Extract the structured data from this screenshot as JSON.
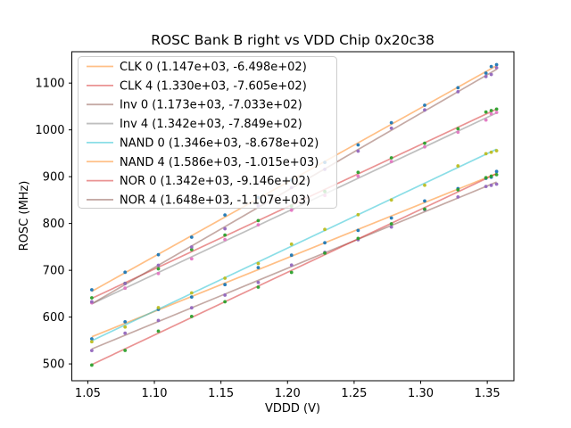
{
  "chart_data": {
    "type": "scatter",
    "title": "ROSC Bank B right vs VDD Chip 0x20c38",
    "xlabel": "VDDD (V)",
    "ylabel": "ROSC (MHz)",
    "xlim": [
      1.038,
      1.37
    ],
    "ylim": [
      464,
      1167
    ],
    "x_ticks": [
      "1.05",
      "1.10",
      "1.15",
      "1.20",
      "1.25",
      "1.30",
      "1.35"
    ],
    "y_ticks": [
      500,
      600,
      700,
      800,
      900,
      1000,
      1100
    ],
    "grid": false,
    "legend_position": "upper left",
    "background": "#ffffff",
    "frame_color": "#000000",
    "x_values": [
      1.053,
      1.078,
      1.103,
      1.128,
      1.153,
      1.178,
      1.203,
      1.228,
      1.253,
      1.278,
      1.303,
      1.328,
      1.349,
      1.353,
      1.357
    ],
    "fit_model": "y_mhz = slope * x_volts + intercept",
    "series": [
      {
        "name": "CLK 0",
        "legend_label": "CLK 0 (1.147e+03, -6.498e+02)",
        "slope": 1147,
        "intercept": -649.8,
        "line_color": "#ff7f0e",
        "marker_color": "#1f77b4"
      },
      {
        "name": "CLK 4",
        "legend_label": "CLK 4 (1.330e+03, -7.605e+02)",
        "slope": 1330,
        "intercept": -760.5,
        "line_color": "#d62728",
        "marker_color": "#2ca02c"
      },
      {
        "name": "Inv 0",
        "legend_label": "Inv 0 (1.173e+03, -7.033e+02)",
        "slope": 1173,
        "intercept": -703.3,
        "line_color": "#8c564b",
        "marker_color": "#9467bd"
      },
      {
        "name": "Inv 4",
        "legend_label": "Inv 4 (1.342e+03, -7.849e+02)",
        "slope": 1342,
        "intercept": -784.9,
        "line_color": "#7f7f7f",
        "marker_color": "#e377c2"
      },
      {
        "name": "NAND 0",
        "legend_label": "NAND 0 (1.346e+03, -8.678e+02)",
        "slope": 1346,
        "intercept": -867.8,
        "line_color": "#17becf",
        "marker_color": "#bcbd22"
      },
      {
        "name": "NAND 4",
        "legend_label": "NAND 4 (1.586e+03, -1.015e+03)",
        "slope": 1586,
        "intercept": -1015.0,
        "line_color": "#ff7f0e",
        "marker_color": "#1f77b4"
      },
      {
        "name": "NOR 0",
        "legend_label": "NOR 0 (1.342e+03, -9.146e+02)",
        "slope": 1342,
        "intercept": -914.6,
        "line_color": "#d62728",
        "marker_color": "#2ca02c"
      },
      {
        "name": "NOR 4",
        "legend_label": "NOR 4 (1.648e+03, -1.107e+03)",
        "slope": 1648,
        "intercept": -1107.0,
        "line_color": "#8c564b",
        "marker_color": "#9467bd"
      }
    ]
  }
}
